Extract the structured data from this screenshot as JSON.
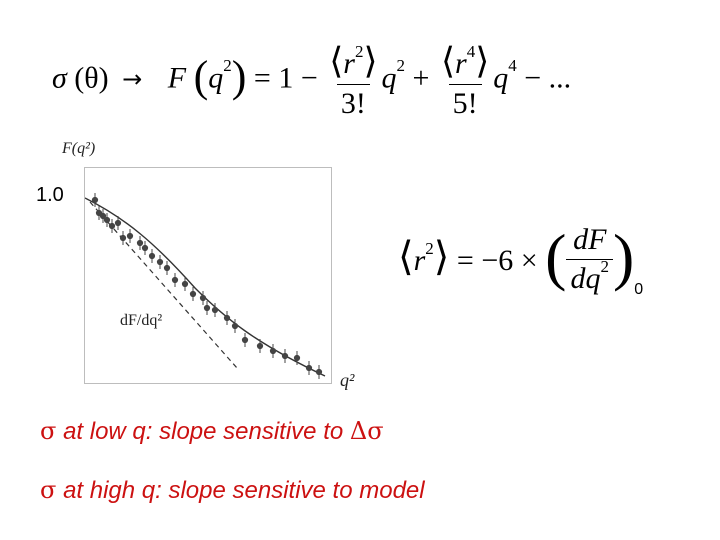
{
  "top_equation": {
    "sigma": "σ",
    "theta_part": "(θ)",
    "arrow": "→",
    "F": "F",
    "q2_base": "q",
    "sq": "2",
    "equals_one_minus": "= 1 −",
    "r2": "r",
    "r4": "r",
    "four": "4",
    "fact3": "3!",
    "fact5": "5!",
    "q": "q",
    "plus": "+",
    "trailing": "− ..."
  },
  "plot": {
    "ylabel": "F(q²)",
    "ytick": "1.0",
    "xlabel": "q²",
    "annotation": "dF/dq²"
  },
  "radius_equation": {
    "r": "r",
    "sq": "2",
    "equals": "= −6 ×",
    "num": "dF",
    "den": "dq",
    "subscript": "0"
  },
  "captions": {
    "line1_sigma": "σ",
    "line1_text": "at low q:   slope sensitive to",
    "line1_delta": "Δσ",
    "line2_sigma": "σ",
    "line2_text": "at high q:   slope sensitive to model"
  },
  "colors": {
    "caption": "#cc1111"
  }
}
